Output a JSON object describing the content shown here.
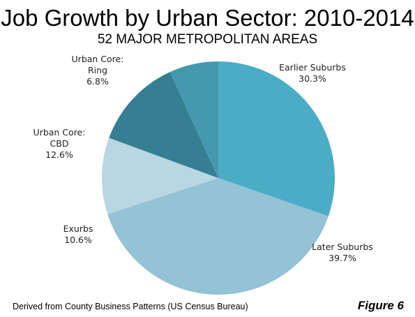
{
  "header": {
    "title": "Job Growth by Urban Sector: 2010-2014",
    "subtitle": "52 MAJOR METROPOLITAN AREAS"
  },
  "footer": {
    "source": "Derived from County Business Patterns (US Census Bureau)",
    "figure": "Figure 6"
  },
  "chart_data": {
    "type": "pie",
    "title": "Job Growth by Urban Sector: 2010-2014",
    "subtitle": "52 MAJOR METROPOLITAN AREAS",
    "start_angle_deg": -90,
    "direction": "clockwise",
    "slices": [
      {
        "label_lines": [
          "Earlier Suburbs"
        ],
        "value": 30.3,
        "display": "30.3%",
        "color": "#4bacc6"
      },
      {
        "label_lines": [
          "Later Suburbs"
        ],
        "value": 39.7,
        "display": "39.7%",
        "color": "#93c3d5"
      },
      {
        "label_lines": [
          "Exurbs"
        ],
        "value": 10.6,
        "display": "10.6%",
        "color": "#b9d7e3"
      },
      {
        "label_lines": [
          "Urban Core:",
          "CBD"
        ],
        "value": 12.6,
        "display": "12.6%",
        "color": "#367f93"
      },
      {
        "label_lines": [
          "Urban Core:",
          "Ring"
        ],
        "value": 6.8,
        "display": "6.8%",
        "color": "#4599ae"
      }
    ]
  }
}
